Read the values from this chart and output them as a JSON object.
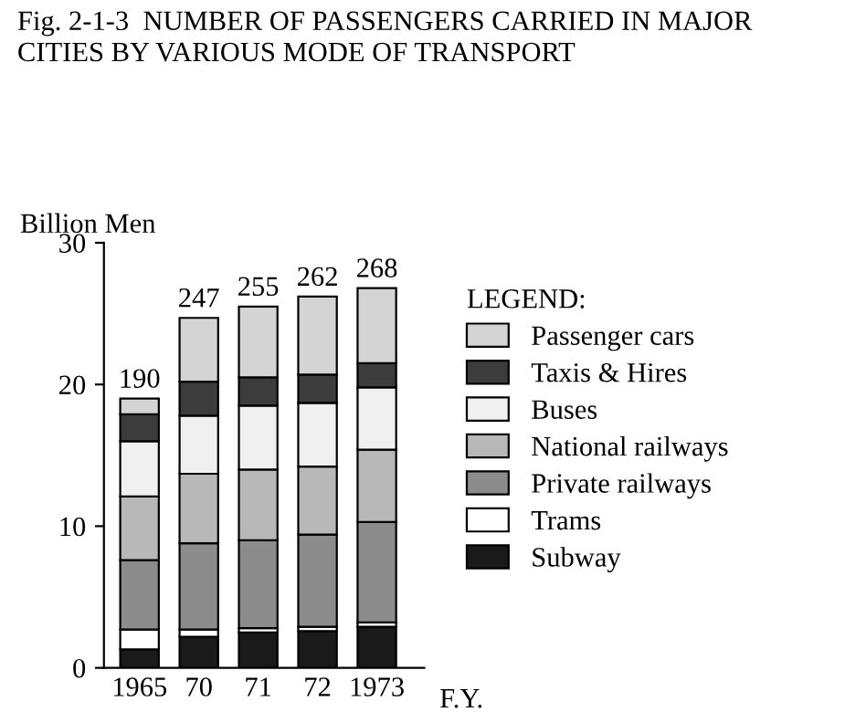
{
  "chart_data": {
    "type": "bar",
    "stacked": true,
    "title": "Fig. 2-1-3  NUMBER OF PASSENGERS CARRIED IN MAJOR\nCITIES BY VARIOUS MODE OF TRANSPORT",
    "ylabel": "Billion Men",
    "xlabel": "F.Y.",
    "legend_title": "LEGEND:",
    "categories": [
      "1965",
      "70",
      "71",
      "72",
      "1973"
    ],
    "series": [
      {
        "name": "Subway",
        "color": "#1a1a1a",
        "values": [
          1.3,
          2.2,
          2.5,
          2.6,
          2.9
        ]
      },
      {
        "name": "Trams",
        "color": "#ffffff",
        "values": [
          1.4,
          0.5,
          0.3,
          0.3,
          0.3
        ]
      },
      {
        "name": "Private railways",
        "color": "#8c8c8c",
        "values": [
          4.9,
          6.1,
          6.2,
          6.5,
          7.1
        ]
      },
      {
        "name": "National railways",
        "color": "#b8b8b8",
        "values": [
          4.5,
          4.9,
          5.0,
          4.8,
          5.1
        ]
      },
      {
        "name": "Buses",
        "color": "#f0f0f0",
        "values": [
          3.9,
          4.1,
          4.5,
          4.5,
          4.4
        ]
      },
      {
        "name": "Taxis & Hires",
        "color": "#3c3c3c",
        "values": [
          1.9,
          2.4,
          2.0,
          2.0,
          1.7
        ]
      },
      {
        "name": "Passenger cars",
        "color": "#d4d4d4",
        "values": [
          1.1,
          4.5,
          5.0,
          5.5,
          5.3
        ]
      }
    ],
    "annotations": [
      {
        "text": "190",
        "x": "1965",
        "y": 19.0
      },
      {
        "text": "247",
        "x": "70",
        "y": 24.7
      },
      {
        "text": "255",
        "x": "71",
        "y": 25.5
      },
      {
        "text": "262",
        "x": "72",
        "y": 26.2
      },
      {
        "text": "268",
        "x": "1973",
        "y": 26.8
      }
    ],
    "ylim": [
      0,
      30
    ],
    "yticks": [
      0,
      10,
      20,
      30
    ],
    "grid": false,
    "legend": "right"
  }
}
